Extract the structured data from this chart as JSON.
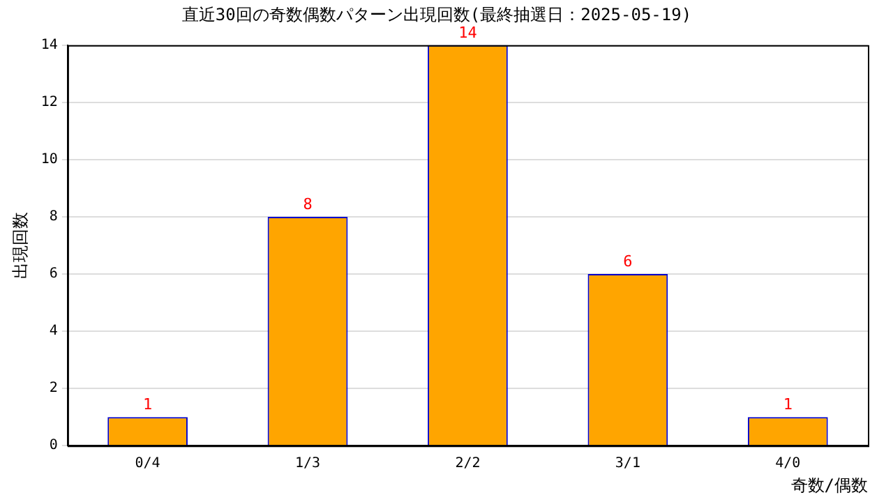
{
  "chart_data": {
    "type": "bar",
    "title": "直近30回の奇数偶数パターン出現回数(最終抽選日：2025-05-19)",
    "xlabel": "奇数/偶数",
    "ylabel": "出現回数",
    "categories": [
      "0/4",
      "1/3",
      "2/2",
      "3/1",
      "4/0"
    ],
    "values": [
      1,
      8,
      14,
      6,
      1
    ],
    "color": "#ffa500",
    "ylim": [
      0,
      14
    ],
    "yticks": [
      0,
      2,
      4,
      6,
      8,
      10,
      12,
      14
    ],
    "grid": "y",
    "data_labels": true,
    "legend": false
  }
}
